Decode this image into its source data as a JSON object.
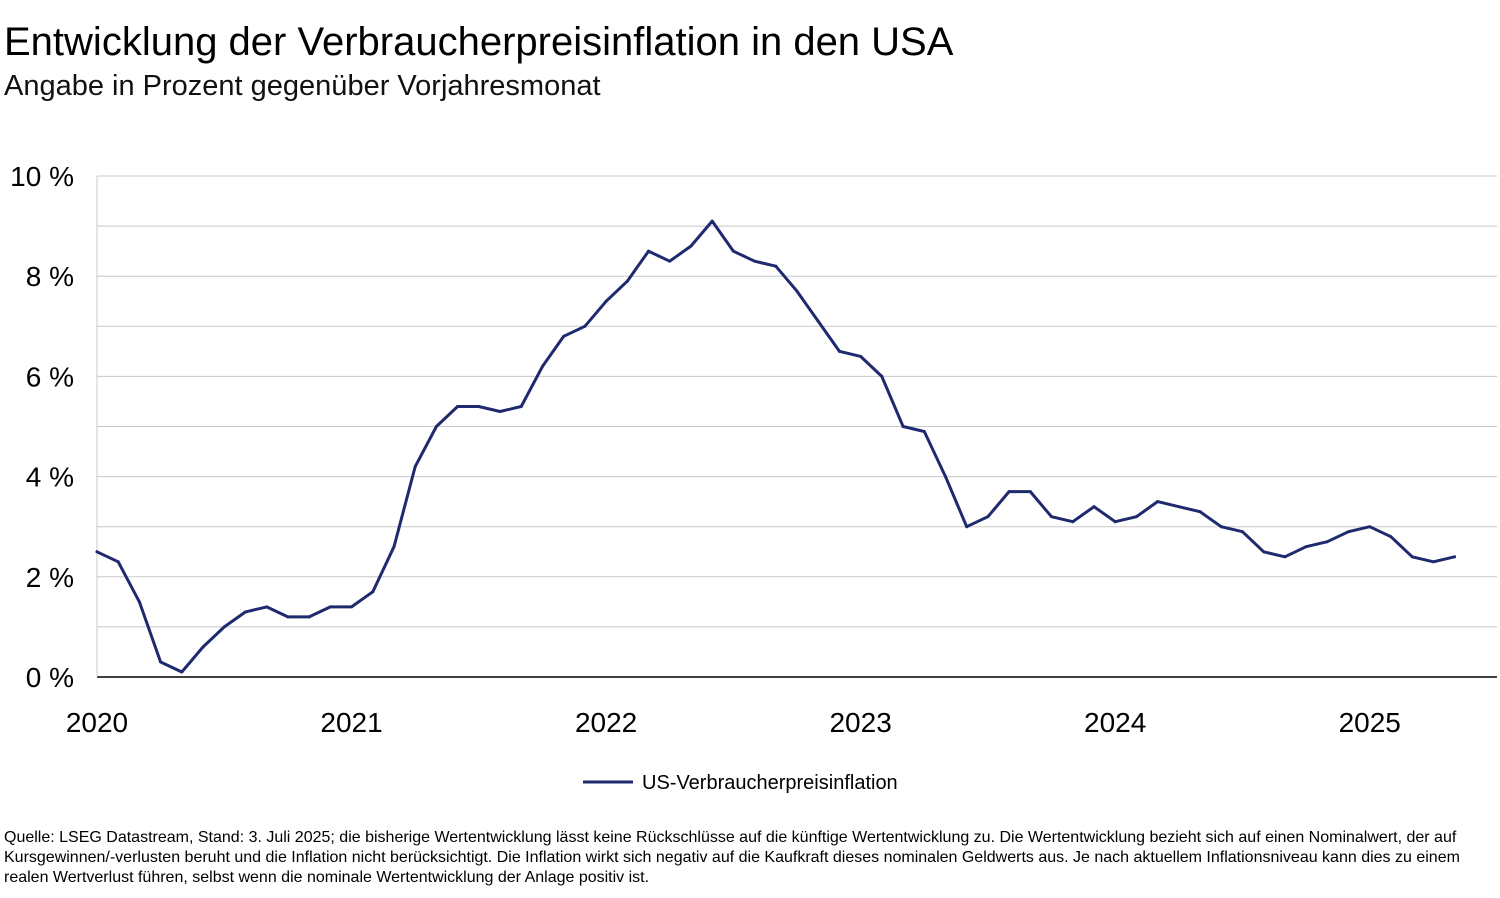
{
  "chart_data": {
    "type": "line",
    "title": "Entwicklung der Verbraucherpreisinflation in den USA",
    "subtitle": "Angabe in Prozent gegenüber Vorjahresmonat",
    "ylim": [
      0,
      10
    ],
    "yticks": [
      0,
      2,
      4,
      6,
      8,
      10
    ],
    "ytick_labels": [
      "0 %",
      "2 %",
      "4 %",
      "6 %",
      "8 %",
      "10 %"
    ],
    "xlim": [
      "2020-01",
      "2025-07"
    ],
    "xticks": [
      "2020-01",
      "2021-01",
      "2022-01",
      "2023-01",
      "2024-01",
      "2025-01"
    ],
    "xtick_labels": [
      "2020",
      "2021",
      "2022",
      "2023",
      "2024",
      "2025"
    ],
    "grid": true,
    "legend_position": "bottom-center",
    "series_color": "#1f2a6e",
    "series": [
      {
        "name": "US-Verbraucherpreisinflation",
        "x": [
          "2020-01",
          "2020-02",
          "2020-03",
          "2020-04",
          "2020-05",
          "2020-06",
          "2020-07",
          "2020-08",
          "2020-09",
          "2020-10",
          "2020-11",
          "2020-12",
          "2021-01",
          "2021-02",
          "2021-03",
          "2021-04",
          "2021-05",
          "2021-06",
          "2021-07",
          "2021-08",
          "2021-09",
          "2021-10",
          "2021-11",
          "2021-12",
          "2022-01",
          "2022-02",
          "2022-03",
          "2022-04",
          "2022-05",
          "2022-06",
          "2022-07",
          "2022-08",
          "2022-09",
          "2022-10",
          "2022-11",
          "2022-12",
          "2023-01",
          "2023-02",
          "2023-03",
          "2023-04",
          "2023-05",
          "2023-06",
          "2023-07",
          "2023-08",
          "2023-09",
          "2023-10",
          "2023-11",
          "2023-12",
          "2024-01",
          "2024-02",
          "2024-03",
          "2024-04",
          "2024-05",
          "2024-06",
          "2024-07",
          "2024-08",
          "2024-09",
          "2024-10",
          "2024-11",
          "2024-12",
          "2025-01",
          "2025-02",
          "2025-03",
          "2025-04",
          "2025-05"
        ],
        "values": [
          2.5,
          2.3,
          1.5,
          0.3,
          0.1,
          0.6,
          1.0,
          1.3,
          1.4,
          1.2,
          1.2,
          1.4,
          1.4,
          1.7,
          2.6,
          4.2,
          5.0,
          5.4,
          5.4,
          5.3,
          5.4,
          6.2,
          6.8,
          7.0,
          7.5,
          7.9,
          8.5,
          8.3,
          8.6,
          9.1,
          8.5,
          8.3,
          8.2,
          7.7,
          7.1,
          6.5,
          6.4,
          6.0,
          5.0,
          4.9,
          4.0,
          3.0,
          3.2,
          3.7,
          3.7,
          3.2,
          3.1,
          3.4,
          3.1,
          3.2,
          3.5,
          3.4,
          3.3,
          3.0,
          2.9,
          2.5,
          2.4,
          2.6,
          2.7,
          2.9,
          3.0,
          2.8,
          2.4,
          2.3,
          2.4
        ]
      }
    ]
  },
  "footer": {
    "source": "Quelle: LSEG Datastream, Stand: 3. Juli 2025; die bisherige Wertentwicklung lässt keine Rückschlüsse auf die künftige Wertentwicklung zu. Die Wertentwicklung bezieht sich auf einen Nominalwert, der auf Kursgewinnen/-verlusten beruht und die Inflation nicht berücksichtigt. Die Inflation wirkt sich negativ auf die Kaufkraft dieses nominalen Geldwerts aus. Je nach aktuellem Inflationsniveau kann dies zu einem realen Wertverlust führen, selbst wenn die nominale Wertentwicklung der Anlage positiv ist."
  }
}
